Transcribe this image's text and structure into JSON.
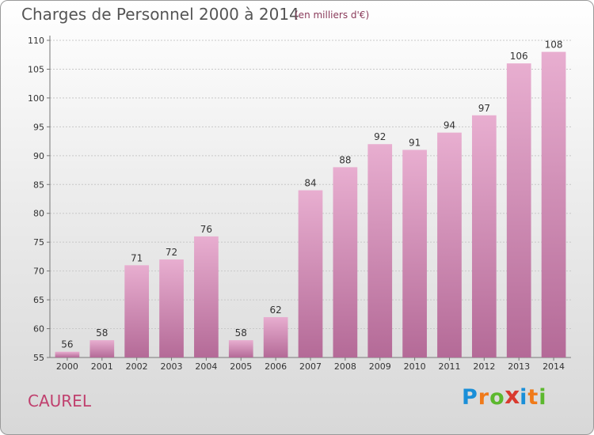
{
  "header": {
    "title": "Charges de Personnel 2000 à 2014",
    "subtitle": "(en milliers d'€)"
  },
  "footer": {
    "commune": "CAUREL",
    "logo_letters": [
      "P",
      "r",
      "o",
      "x",
      "i",
      "t",
      "i"
    ],
    "logo_colors": [
      "#1a8fd8",
      "#f07a1a",
      "#5cb82e",
      "#d93a2f",
      "#1a8fd8",
      "#f07a1a",
      "#5cb82e"
    ]
  },
  "chart_data": {
    "type": "bar",
    "title": "Charges de Personnel 2000 à 2014",
    "subtitle": "(en milliers d'€)",
    "categories": [
      "2000",
      "2001",
      "2002",
      "2003",
      "2004",
      "2005",
      "2006",
      "2007",
      "2008",
      "2009",
      "2010",
      "2011",
      "2012",
      "2013",
      "2014"
    ],
    "values": [
      56,
      58,
      71,
      72,
      76,
      58,
      62,
      84,
      88,
      92,
      91,
      94,
      97,
      106,
      108
    ],
    "ylim": [
      55,
      110
    ],
    "yticks": [
      55,
      60,
      65,
      70,
      75,
      80,
      85,
      90,
      95,
      100,
      105,
      110
    ],
    "grid": true,
    "bar_color": "#d98ab8",
    "bar_color_light": "#e8aed0",
    "bar_color_dark": "#b46a97"
  }
}
